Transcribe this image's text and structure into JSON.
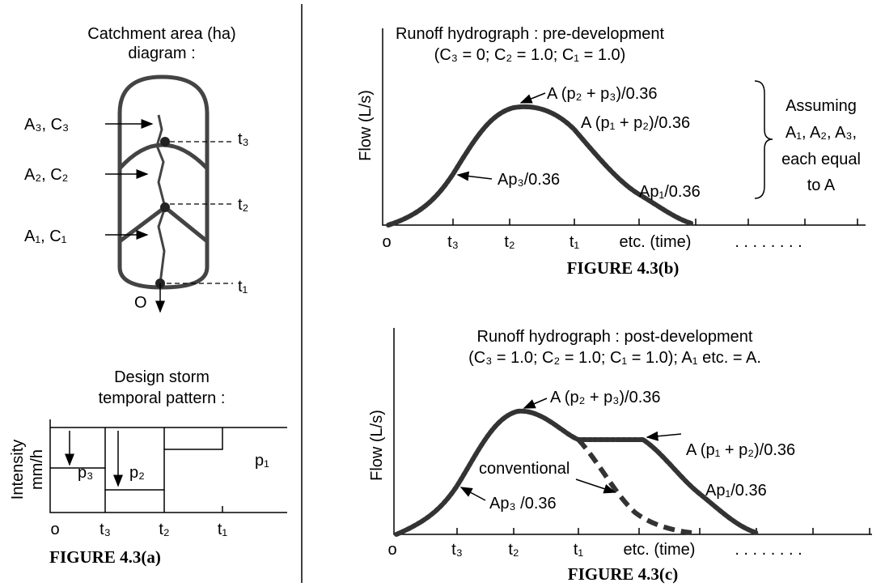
{
  "panel_a_top": {
    "title_lines": [
      "Catchment area (ha)",
      "diagram :"
    ],
    "area_labels": [
      "A₃, C₃",
      "A₂, C₂",
      "A₁, C₁"
    ],
    "time_labels": [
      "t₃",
      "t₂",
      "t₁"
    ],
    "outlet": "O"
  },
  "panel_a_bottom": {
    "title_lines": [
      "Design storm",
      "temporal pattern :"
    ],
    "y_label_lines": [
      "Intensity",
      "mm/h"
    ],
    "pulse_labels": [
      "p₃",
      "p₂",
      "p₁"
    ],
    "x_labels": [
      "o",
      "t₃",
      "t₂",
      "t₁"
    ],
    "caption": "FIGURE 4.3(a)"
  },
  "panel_b": {
    "title_lines": [
      "Runoff hydrograph : pre-development",
      "(C₃ = 0; C₂ = 1.0; C₁ = 1.0)"
    ],
    "y_label": "Flow (L/s)",
    "annotations": [
      "A (p₂ + p₃)/0.36",
      "A (p₁ + p₂)/0.36",
      "Ap₃/0.36",
      "Ap₁/0.36"
    ],
    "x_labels": [
      "o",
      "t₃",
      "t₂",
      "t₁",
      "etc. (time)",
      ". . . . . . . ."
    ],
    "note_lines": [
      "Assuming",
      "A₁, A₂, A₃,",
      "each equal",
      "to A"
    ],
    "caption": "FIGURE 4.3(b)"
  },
  "panel_c": {
    "title_lines": [
      "Runoff hydrograph : post-development",
      "(C₃ = 1.0; C₂ = 1.0; C₁ = 1.0); A₁ etc. = A."
    ],
    "y_label": "Flow (L/s)",
    "annotations": [
      "A (p₂ + p₃)/0.36",
      "A (p₁ + p₂)/0.36",
      "conventional",
      "Ap₃ /0.36",
      "Ap₁/0.36"
    ],
    "x_labels": [
      "o",
      "t₃",
      "t₂",
      "t₁",
      "etc. (time)",
      ". . . . . . . ."
    ],
    "caption": "FIGURE 4.3(c)"
  }
}
